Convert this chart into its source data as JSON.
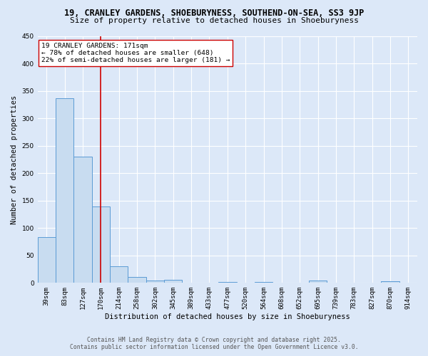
{
  "title_line1": "19, CRANLEY GARDENS, SHOEBURYNESS, SOUTHEND-ON-SEA, SS3 9JP",
  "title_line2": "Size of property relative to detached houses in Shoeburyness",
  "xlabel": "Distribution of detached houses by size in Shoeburyness",
  "ylabel": "Number of detached properties",
  "categories": [
    "39sqm",
    "83sqm",
    "127sqm",
    "170sqm",
    "214sqm",
    "258sqm",
    "302sqm",
    "345sqm",
    "389sqm",
    "433sqm",
    "477sqm",
    "520sqm",
    "564sqm",
    "608sqm",
    "652sqm",
    "695sqm",
    "739sqm",
    "783sqm",
    "827sqm",
    "870sqm",
    "914sqm"
  ],
  "values": [
    83,
    337,
    230,
    140,
    30,
    11,
    4,
    5,
    0,
    0,
    2,
    0,
    2,
    0,
    0,
    4,
    0,
    0,
    0,
    3,
    0
  ],
  "bar_color": "#c8dcf0",
  "bar_edge_color": "#5b9bd5",
  "vline_x": 3,
  "vline_color": "#cc0000",
  "annotation_text": "19 CRANLEY GARDENS: 171sqm\n← 78% of detached houses are smaller (648)\n22% of semi-detached houses are larger (181) →",
  "annotation_box_color": "white",
  "annotation_box_edge": "#cc0000",
  "annotation_fontsize": 6.8,
  "ylim": [
    0,
    450
  ],
  "yticks": [
    0,
    50,
    100,
    150,
    200,
    250,
    300,
    350,
    400,
    450
  ],
  "background_color": "#dce8f8",
  "grid_color": "white",
  "footer_line1": "Contains HM Land Registry data © Crown copyright and database right 2025.",
  "footer_line2": "Contains public sector information licensed under the Open Government Licence v3.0.",
  "title_fontsize": 8.5,
  "subtitle_fontsize": 8,
  "axis_label_fontsize": 7.5,
  "tick_fontsize": 6.5,
  "footer_fontsize": 5.8
}
